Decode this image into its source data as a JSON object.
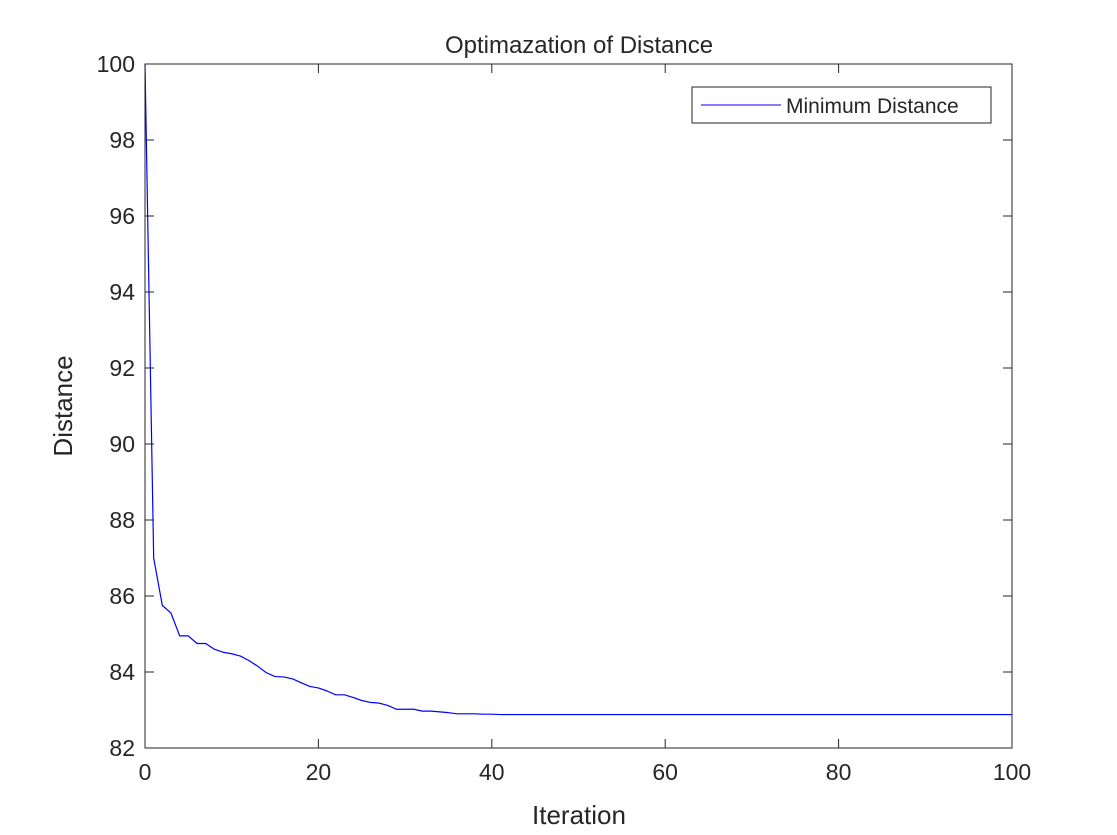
{
  "chart_data": {
    "type": "line",
    "title": "Optimazation of Distance",
    "xlabel": "Iteration",
    "ylabel": "Distance",
    "xlim": [
      0,
      100
    ],
    "ylim": [
      82,
      100
    ],
    "xticks": [
      0,
      20,
      40,
      60,
      80,
      100
    ],
    "yticks": [
      82,
      84,
      86,
      88,
      90,
      92,
      94,
      96,
      98,
      100
    ],
    "grid": false,
    "legend": {
      "placement": "top-right",
      "entries": [
        "Minimum Distance"
      ]
    },
    "series": [
      {
        "name": "Minimum Distance",
        "color": "#0000ff",
        "x": [
          0,
          1,
          2,
          3,
          4,
          5,
          6,
          7,
          8,
          9,
          10,
          11,
          12,
          13,
          14,
          15,
          16,
          17,
          18,
          19,
          20,
          21,
          22,
          23,
          24,
          25,
          26,
          27,
          28,
          29,
          30,
          31,
          32,
          33,
          34,
          35,
          36,
          37,
          38,
          39,
          40,
          41,
          50,
          60,
          70,
          80,
          90,
          100
        ],
        "y": [
          100,
          87.0,
          85.75,
          85.55,
          84.95,
          84.95,
          84.75,
          84.75,
          84.6,
          84.52,
          84.48,
          84.42,
          84.3,
          84.15,
          83.98,
          83.88,
          83.87,
          83.82,
          83.72,
          83.62,
          83.58,
          83.5,
          83.4,
          83.4,
          83.33,
          83.25,
          83.2,
          83.18,
          83.12,
          83.02,
          83.02,
          83.02,
          82.97,
          82.97,
          82.95,
          82.93,
          82.9,
          82.9,
          82.9,
          82.89,
          82.89,
          82.88,
          82.88,
          82.88,
          82.88,
          82.88,
          82.88,
          82.88
        ]
      }
    ]
  }
}
